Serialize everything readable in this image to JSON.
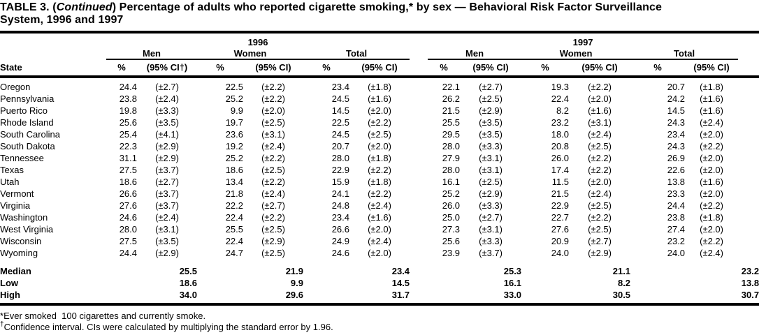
{
  "title": {
    "prefix": "TABLE 3. (",
    "continued": "Continued",
    "suffix_line1": ") Percentage of adults who reported cigarette smoking,* by sex — Behavioral Risk Factor Surveillance",
    "line2": "System, 1996 and 1997"
  },
  "table": {
    "state_header": "State",
    "year_headers": [
      "1996",
      "1997"
    ],
    "group_headers": [
      "Men",
      "Women",
      "Total"
    ],
    "pct_header": "%",
    "ci_header_first": "(95% CI†)",
    "ci_header": "(95% CI)",
    "rows": [
      {
        "state": "Oregon",
        "values": [
          "24.4",
          "(±2.7)",
          "22.5",
          "(±2.2)",
          "23.4",
          "(±1.8)",
          "22.1",
          "(±2.7)",
          "19.3",
          "(±2.2)",
          "20.7",
          "(±1.8)"
        ]
      },
      {
        "state": "Pennsylvania",
        "values": [
          "23.8",
          "(±2.4)",
          "25.2",
          "(±2.2)",
          "24.5",
          "(±1.6)",
          "26.2",
          "(±2.5)",
          "22.4",
          "(±2.0)",
          "24.2",
          "(±1.6)"
        ]
      },
      {
        "state": "Puerto Rico",
        "values": [
          "19.8",
          "(±3.3)",
          "9.9",
          "(±2.0)",
          "14.5",
          "(±2.0)",
          "21.5",
          "(±2.9)",
          "8.2",
          "(±1.6)",
          "14.5",
          "(±1.6)"
        ]
      },
      {
        "state": "Rhode Island",
        "values": [
          "25.6",
          "(±3.5)",
          "19.7",
          "(±2.5)",
          "22.5",
          "(±2.2)",
          "25.5",
          "(±3.5)",
          "23.2",
          "(±3.1)",
          "24.3",
          "(±2.4)"
        ]
      },
      {
        "state": "South Carolina",
        "values": [
          "25.4",
          "(±4.1)",
          "23.6",
          "(±3.1)",
          "24.5",
          "(±2.5)",
          "29.5",
          "(±3.5)",
          "18.0",
          "(±2.4)",
          "23.4",
          "(±2.0)"
        ]
      },
      {
        "state": "South Dakota",
        "values": [
          "22.3",
          "(±2.9)",
          "19.2",
          "(±2.4)",
          "20.7",
          "(±2.0)",
          "28.0",
          "(±3.3)",
          "20.8",
          "(±2.5)",
          "24.3",
          "(±2.2)"
        ]
      },
      {
        "state": "Tennessee",
        "values": [
          "31.1",
          "(±2.9)",
          "25.2",
          "(±2.2)",
          "28.0",
          "(±1.8)",
          "27.9",
          "(±3.1)",
          "26.0",
          "(±2.2)",
          "26.9",
          "(±2.0)"
        ]
      },
      {
        "state": "Texas",
        "values": [
          "27.5",
          "(±3.7)",
          "18.6",
          "(±2.5)",
          "22.9",
          "(±2.2)",
          "28.0",
          "(±3.1)",
          "17.4",
          "(±2.2)",
          "22.6",
          "(±2.0)"
        ]
      },
      {
        "state": "Utah",
        "values": [
          "18.6",
          "(±2.7)",
          "13.4",
          "(±2.2)",
          "15.9",
          "(±1.8)",
          "16.1",
          "(±2.5)",
          "11.5",
          "(±2.0)",
          "13.8",
          "(±1.6)"
        ]
      },
      {
        "state": "Vermont",
        "values": [
          "26.6",
          "(±3.7)",
          "21.8",
          "(±2.4)",
          "24.1",
          "(±2.2)",
          "25.2",
          "(±2.9)",
          "21.5",
          "(±2.4)",
          "23.3",
          "(±2.0)"
        ]
      },
      {
        "state": "Virginia",
        "values": [
          "27.6",
          "(±3.7)",
          "22.2",
          "(±2.7)",
          "24.8",
          "(±2.4)",
          "26.0",
          "(±3.3)",
          "22.9",
          "(±2.5)",
          "24.4",
          "(±2.2)"
        ]
      },
      {
        "state": "Washington",
        "values": [
          "24.6",
          "(±2.4)",
          "22.4",
          "(±2.2)",
          "23.4",
          "(±1.6)",
          "25.0",
          "(±2.7)",
          "22.7",
          "(±2.2)",
          "23.8",
          "(±1.8)"
        ]
      },
      {
        "state": "West Virginia",
        "values": [
          "28.0",
          "(±3.1)",
          "25.5",
          "(±2.5)",
          "26.6",
          "(±2.0)",
          "27.3",
          "(±3.1)",
          "27.6",
          "(±2.5)",
          "27.4",
          "(±2.0)"
        ]
      },
      {
        "state": "Wisconsin",
        "values": [
          "27.5",
          "(±3.5)",
          "22.4",
          "(±2.9)",
          "24.9",
          "(±2.4)",
          "25.6",
          "(±3.3)",
          "20.9",
          "(±2.7)",
          "23.2",
          "(±2.2)"
        ]
      },
      {
        "state": "Wyoming",
        "values": [
          "24.4",
          "(±2.9)",
          "24.7",
          "(±2.5)",
          "24.6",
          "(±2.0)",
          "23.9",
          "(±3.7)",
          "24.0",
          "(±2.9)",
          "24.0",
          "(±2.4)"
        ]
      }
    ],
    "summary_rows": [
      {
        "label": "Median",
        "values": [
          "25.5",
          "21.9",
          "23.4",
          "25.3",
          "21.1",
          "23.2"
        ]
      },
      {
        "label": "Low",
        "values": [
          "18.6",
          "9.9",
          "14.5",
          "16.1",
          "8.2",
          "13.8"
        ]
      },
      {
        "label": "High",
        "values": [
          "34.0",
          "29.6",
          "31.7",
          "33.0",
          "30.5",
          "30.7"
        ]
      }
    ]
  },
  "footnotes": [
    {
      "marker": "*",
      "text": "Ever smoked  100 cigarettes and currently smoke."
    },
    {
      "marker": "†",
      "text": "Confidence interval. CIs were calculated by multiplying the standard error by 1.96."
    }
  ]
}
